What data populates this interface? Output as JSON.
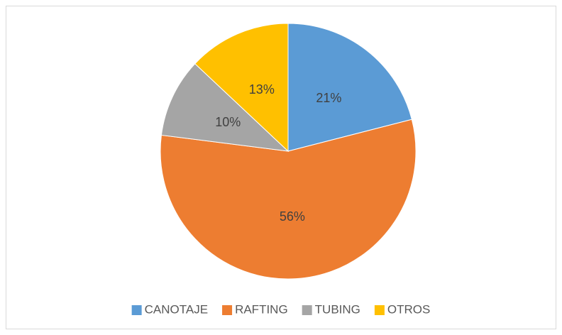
{
  "chart_data": {
    "type": "pie",
    "categories": [
      "CANOTAJE",
      "RAFTING",
      "TUBING",
      "OTROS"
    ],
    "values": [
      21,
      56,
      10,
      13
    ],
    "value_labels": [
      "21%",
      "56%",
      "10%",
      "13%"
    ],
    "colors": [
      "#5b9bd5",
      "#ed7d31",
      "#a5a5a5",
      "#ffc000"
    ],
    "legend": "bottom"
  }
}
